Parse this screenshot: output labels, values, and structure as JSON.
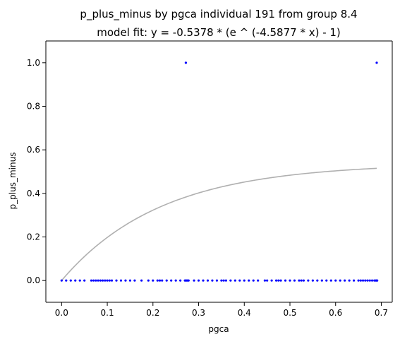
{
  "chart_data": {
    "type": "scatter",
    "title": "p_plus_minus by pgca individual 191 from group 8.4",
    "subtitle": "model fit: y = -0.5378 * (e ^ (-4.5877 * x) - 1)",
    "xlabel": "pgca",
    "ylabel": "p_plus_minus",
    "xlim": [
      -0.0345,
      0.724
    ],
    "ylim": [
      -0.1,
      1.1
    ],
    "x_ticks": [
      0.0,
      0.1,
      0.2,
      0.3,
      0.4,
      0.5,
      0.6,
      0.7
    ],
    "x_tick_labels": [
      "0.0",
      "0.1",
      "0.2",
      "0.3",
      "0.4",
      "0.5",
      "0.6",
      "0.7"
    ],
    "y_ticks": [
      0.0,
      0.2,
      0.4,
      0.6,
      0.8,
      1.0
    ],
    "y_tick_labels": [
      "0.0",
      "0.2",
      "0.4",
      "0.6",
      "0.8",
      "1.0"
    ],
    "grid": false,
    "legend": "none",
    "series": [
      {
        "type": "scatter",
        "color": "#0000ff",
        "points": [
          [
            0.0,
            0.0
          ],
          [
            0.01,
            0.0
          ],
          [
            0.02,
            0.0
          ],
          [
            0.03,
            0.0
          ],
          [
            0.04,
            0.0
          ],
          [
            0.05,
            0.0
          ],
          [
            0.065,
            0.0
          ],
          [
            0.07,
            0.0
          ],
          [
            0.075,
            0.0
          ],
          [
            0.08,
            0.0
          ],
          [
            0.085,
            0.0
          ],
          [
            0.09,
            0.0
          ],
          [
            0.095,
            0.0
          ],
          [
            0.1,
            0.0
          ],
          [
            0.105,
            0.0
          ],
          [
            0.11,
            0.0
          ],
          [
            0.12,
            0.0
          ],
          [
            0.13,
            0.0
          ],
          [
            0.14,
            0.0
          ],
          [
            0.15,
            0.0
          ],
          [
            0.16,
            0.0
          ],
          [
            0.175,
            0.0
          ],
          [
            0.19,
            0.0
          ],
          [
            0.2,
            0.0
          ],
          [
            0.21,
            0.0
          ],
          [
            0.215,
            0.0
          ],
          [
            0.22,
            0.0
          ],
          [
            0.23,
            0.0
          ],
          [
            0.24,
            0.0
          ],
          [
            0.25,
            0.0
          ],
          [
            0.26,
            0.0
          ],
          [
            0.27,
            0.0
          ],
          [
            0.272,
            0.0
          ],
          [
            0.274,
            0.0
          ],
          [
            0.276,
            0.0
          ],
          [
            0.278,
            0.0
          ],
          [
            0.29,
            0.0
          ],
          [
            0.3,
            0.0
          ],
          [
            0.31,
            0.0
          ],
          [
            0.32,
            0.0
          ],
          [
            0.33,
            0.0
          ],
          [
            0.34,
            0.0
          ],
          [
            0.35,
            0.0
          ],
          [
            0.355,
            0.0
          ],
          [
            0.36,
            0.0
          ],
          [
            0.37,
            0.0
          ],
          [
            0.38,
            0.0
          ],
          [
            0.39,
            0.0
          ],
          [
            0.4,
            0.0
          ],
          [
            0.41,
            0.0
          ],
          [
            0.42,
            0.0
          ],
          [
            0.43,
            0.0
          ],
          [
            0.445,
            0.0
          ],
          [
            0.45,
            0.0
          ],
          [
            0.46,
            0.0
          ],
          [
            0.47,
            0.0
          ],
          [
            0.475,
            0.0
          ],
          [
            0.48,
            0.0
          ],
          [
            0.49,
            0.0
          ],
          [
            0.5,
            0.0
          ],
          [
            0.51,
            0.0
          ],
          [
            0.52,
            0.0
          ],
          [
            0.525,
            0.0
          ],
          [
            0.53,
            0.0
          ],
          [
            0.54,
            0.0
          ],
          [
            0.55,
            0.0
          ],
          [
            0.56,
            0.0
          ],
          [
            0.57,
            0.0
          ],
          [
            0.58,
            0.0
          ],
          [
            0.59,
            0.0
          ],
          [
            0.6,
            0.0
          ],
          [
            0.61,
            0.0
          ],
          [
            0.62,
            0.0
          ],
          [
            0.63,
            0.0
          ],
          [
            0.64,
            0.0
          ],
          [
            0.65,
            0.0
          ],
          [
            0.655,
            0.0
          ],
          [
            0.66,
            0.0
          ],
          [
            0.665,
            0.0
          ],
          [
            0.67,
            0.0
          ],
          [
            0.675,
            0.0
          ],
          [
            0.68,
            0.0
          ],
          [
            0.685,
            0.0
          ],
          [
            0.688,
            0.0
          ],
          [
            0.69,
            0.0
          ],
          [
            0.691,
            0.0
          ],
          [
            0.272,
            1.0
          ],
          [
            0.69,
            1.0
          ]
        ]
      },
      {
        "type": "line",
        "color": "#b0b0b0",
        "equation": "y = -0.5378 * (e ^ (-4.5877 * x) - 1)",
        "a": -0.5378,
        "b": -4.5877,
        "x_range": [
          0.0,
          0.69
        ]
      }
    ]
  }
}
